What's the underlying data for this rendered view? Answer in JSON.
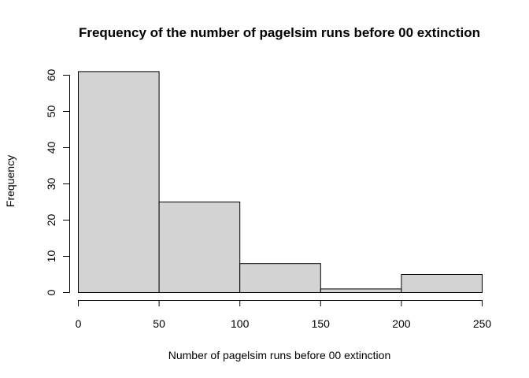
{
  "chart_data": {
    "type": "bar",
    "title": "Frequency of the number of pagelsim runs before 00 extinction",
    "xlabel": "Number of pagelsim runs before 00 extinction",
    "ylabel": "Frequency",
    "bins": [
      {
        "from": 0,
        "to": 50,
        "value": 61
      },
      {
        "from": 50,
        "to": 100,
        "value": 25
      },
      {
        "from": 100,
        "to": 150,
        "value": 8
      },
      {
        "from": 150,
        "to": 200,
        "value": 1
      },
      {
        "from": 200,
        "to": 250,
        "value": 5
      }
    ],
    "xlim": [
      0,
      250
    ],
    "ylim": [
      0,
      60
    ],
    "x_ticks": [
      "0",
      "50",
      "100",
      "150",
      "200",
      "250"
    ],
    "y_ticks": [
      "0",
      "10",
      "20",
      "30",
      "40",
      "50",
      "60"
    ],
    "grid": false,
    "bar_fill": "#d3d3d3",
    "bar_stroke": "#000000"
  }
}
